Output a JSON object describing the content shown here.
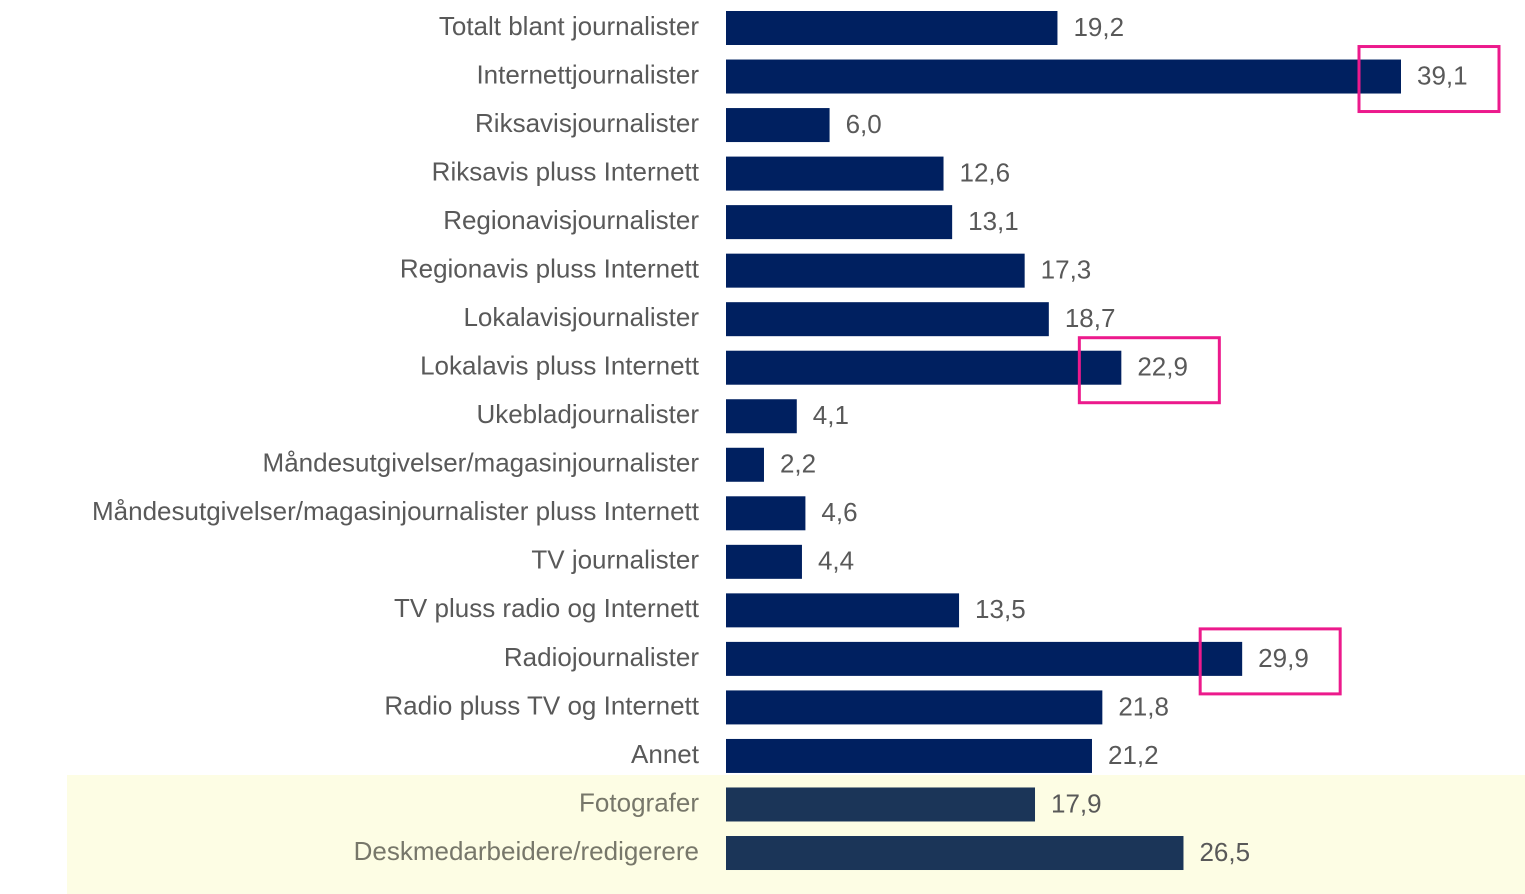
{
  "chart_data": {
    "type": "hbar",
    "categories": [
      "Totalt blant journalister",
      "Internettjournalister",
      "Riksavisjournalister",
      "Riksavis pluss Internett",
      "Regionavisjournalister",
      "Regionavis pluss Internett",
      "Lokalavisjournalister",
      "Lokalavis pluss Internett",
      "Ukebladjournalister",
      "Måndesutgivelser/magasinjournalister",
      "Måndesutgivelser/magasinjournalister pluss Internett",
      "TV journalister",
      "TV pluss radio og Internett",
      "Radiojournalister",
      "Radio pluss TV og Internett",
      "Annet",
      "Fotografer",
      "Deskmedarbeidere/redigerere"
    ],
    "values": [
      19.2,
      39.1,
      6.0,
      12.6,
      13.1,
      17.3,
      18.7,
      22.9,
      4.1,
      2.2,
      4.6,
      4.4,
      13.5,
      29.9,
      21.8,
      21.2,
      17.9,
      26.5
    ],
    "value_labels": [
      "19,2",
      "39,1",
      "6,0",
      "12,6",
      "13,1",
      "17,3",
      "18,7",
      "22,9",
      "4,1",
      "2,2",
      "4,6",
      "4,4",
      "13,5",
      "29,9",
      "21,8",
      "21,2",
      "17,9",
      "26,5"
    ],
    "colors": [
      "#002060",
      "#002060",
      "#002060",
      "#002060",
      "#002060",
      "#002060",
      "#002060",
      "#002060",
      "#002060",
      "#002060",
      "#002060",
      "#002060",
      "#002060",
      "#002060",
      "#002060",
      "#002060",
      "#1b3558",
      "#1b3558"
    ]
  }
}
